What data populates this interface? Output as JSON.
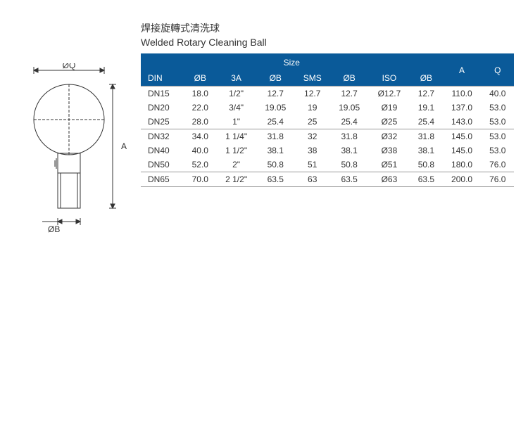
{
  "title_cn": "焊接旋轉式清洗球",
  "title_en": "Welded Rotary Cleaning Ball",
  "diagram": {
    "label_Q": "ØQ",
    "label_A": "A",
    "label_B": "ØB",
    "stroke": "#333333"
  },
  "table": {
    "header_bg": "#0a5a99",
    "header_fg": "#ffffff",
    "size_label": "Size",
    "columns": [
      "DIN",
      "ØB",
      "3A",
      "ØB",
      "SMS",
      "ØB",
      "ISO",
      "ØB",
      "A",
      "Q"
    ],
    "groups": [
      [
        [
          "DN15",
          "18.0",
          "1/2\"",
          "12.7",
          "12.7",
          "12.7",
          "Ø12.7",
          "12.7",
          "110.0",
          "40.0"
        ],
        [
          "DN20",
          "22.0",
          "3/4\"",
          "19.05",
          "19",
          "19.05",
          "Ø19",
          "19.1",
          "137.0",
          "53.0"
        ],
        [
          "DN25",
          "28.0",
          "1\"",
          "25.4",
          "25",
          "25.4",
          "Ø25",
          "25.4",
          "143.0",
          "53.0"
        ]
      ],
      [
        [
          "DN32",
          "34.0",
          "1 1/4\"",
          "31.8",
          "32",
          "31.8",
          "Ø32",
          "31.8",
          "145.0",
          "53.0"
        ],
        [
          "DN40",
          "40.0",
          "1 1/2\"",
          "38.1",
          "38",
          "38.1",
          "Ø38",
          "38.1",
          "145.0",
          "53.0"
        ],
        [
          "DN50",
          "52.0",
          "2\"",
          "50.8",
          "51",
          "50.8",
          "Ø51",
          "50.8",
          "180.0",
          "76.0"
        ]
      ],
      [
        [
          "DN65",
          "70.0",
          "2 1/2\"",
          "63.5",
          "63",
          "63.5",
          "Ø63",
          "63.5",
          "200.0",
          "76.0"
        ]
      ]
    ]
  }
}
